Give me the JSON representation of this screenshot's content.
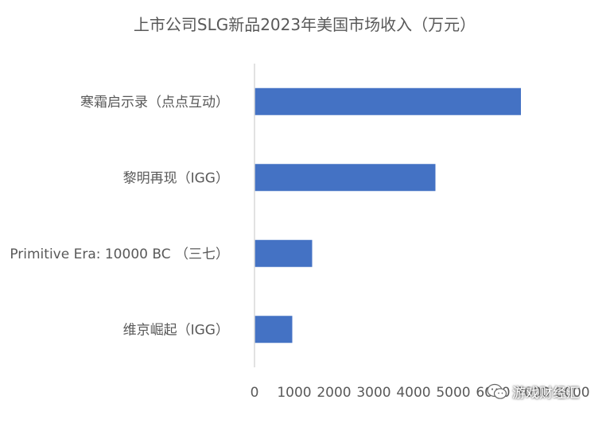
{
  "chart_data": {
    "type": "bar",
    "orientation": "horizontal",
    "title": "上市公司SLG新品2023年美国市场收入（万元）",
    "categories": [
      "寒霜启示录（点点互动）",
      "黎明再现（IGG）",
      "Primitive Era: 10000 BC （三七）",
      "维京崛起（IGG）"
    ],
    "values": [
      6700,
      4550,
      1450,
      950
    ],
    "xlim": [
      0,
      8000
    ],
    "xticks": [
      0,
      1000,
      2000,
      3000,
      4000,
      5000,
      6000,
      7000,
      8000
    ],
    "xtick_labels": [
      "0",
      "1000",
      "2000",
      "3000",
      "4000",
      "5000",
      "6000",
      "7000",
      "8000"
    ],
    "bar_color": "#4472c4",
    "grid": false,
    "legend": "none"
  },
  "watermark": {
    "text": "游戏财经汇",
    "icon": "wechat-icon"
  }
}
